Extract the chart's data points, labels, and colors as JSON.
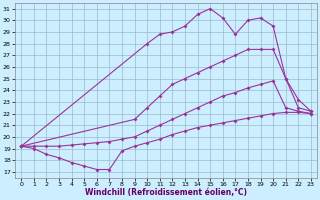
{
  "xlabel": "Windchill (Refroidissement éolien,°C)",
  "bg_color": "#cceeff",
  "line_color": "#993399",
  "grid_color": "#99bbcc",
  "ylim": [
    16.5,
    31.5
  ],
  "xlim": [
    -0.5,
    23.5
  ],
  "curve_top": {
    "x": [
      0,
      10,
      11,
      12,
      13,
      14,
      15,
      16,
      17,
      18,
      19,
      20,
      21,
      22,
      23
    ],
    "y": [
      19.2,
      28.0,
      28.8,
      29.0,
      29.5,
      30.5,
      31.0,
      30.2,
      28.8,
      30.0,
      30.2,
      29.5,
      25.0,
      23.2,
      22.2
    ]
  },
  "curve_mid_high": {
    "x": [
      0,
      9,
      10,
      11,
      12,
      13,
      14,
      15,
      16,
      17,
      18,
      19,
      20,
      21,
      22,
      23
    ],
    "y": [
      19.2,
      21.5,
      22.5,
      23.5,
      24.5,
      25.0,
      25.5,
      26.0,
      26.5,
      27.0,
      27.5,
      27.5,
      27.5,
      25.0,
      22.5,
      22.2
    ]
  },
  "curve_mid_low": {
    "x": [
      0,
      1,
      2,
      3,
      4,
      5,
      6,
      7,
      8,
      9,
      10,
      11,
      12,
      13,
      14,
      15,
      16,
      17,
      18,
      19,
      20,
      21,
      22,
      23
    ],
    "y": [
      19.2,
      19.2,
      19.2,
      19.2,
      19.3,
      19.4,
      19.5,
      19.6,
      19.8,
      20.0,
      20.5,
      21.0,
      21.5,
      22.0,
      22.5,
      23.0,
      23.5,
      23.8,
      24.2,
      24.5,
      24.8,
      22.5,
      22.2,
      22.0
    ]
  },
  "curve_bottom": {
    "x": [
      0,
      1,
      2,
      3,
      4,
      5,
      6,
      7,
      8,
      9,
      10,
      11,
      12,
      13,
      14,
      15,
      16,
      17,
      18,
      19,
      20,
      21,
      22,
      23
    ],
    "y": [
      19.2,
      19.0,
      18.5,
      18.2,
      17.8,
      17.5,
      17.2,
      17.2,
      18.8,
      19.2,
      19.5,
      19.8,
      20.2,
      20.5,
      20.8,
      21.0,
      21.2,
      21.4,
      21.6,
      21.8,
      22.0,
      22.1,
      22.1,
      22.0
    ]
  }
}
